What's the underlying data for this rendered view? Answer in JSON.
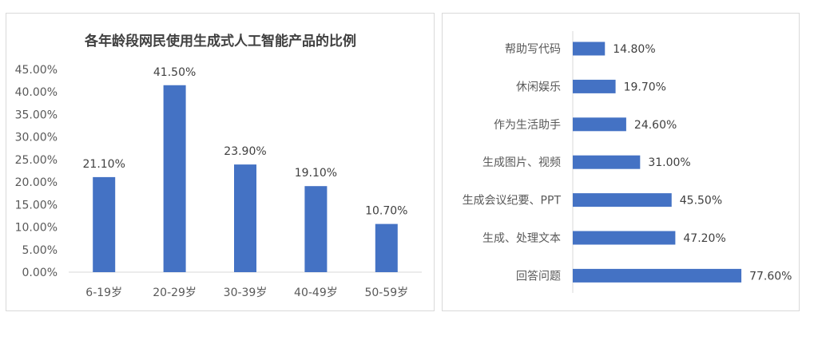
{
  "chart_data": [
    {
      "type": "bar",
      "title": "各年龄段网民使用生成式人工智能产品的比例",
      "categories": [
        "6-19岁",
        "20-29岁",
        "30-39岁",
        "40-49岁",
        "50-59岁"
      ],
      "values": [
        21.1,
        41.5,
        23.9,
        19.1,
        10.7
      ],
      "value_labels": [
        "21.10%",
        "41.50%",
        "23.90%",
        "19.10%",
        "10.70%"
      ],
      "ylim": [
        0,
        45
      ],
      "yticks": [
        "0.00%",
        "5.00%",
        "10.00%",
        "15.00%",
        "20.00%",
        "25.00%",
        "30.00%",
        "35.00%",
        "40.00%",
        "45.00%"
      ],
      "grid": false,
      "color": "#4472C4"
    },
    {
      "type": "bar",
      "orientation": "horizontal",
      "categories": [
        "帮助写代码",
        "休闲娱乐",
        "作为生活助手",
        "生成图片、视频",
        "生成会议纪要、PPT",
        "生成、处理文本",
        "回答问题"
      ],
      "values": [
        14.8,
        19.7,
        24.6,
        31.0,
        45.5,
        47.2,
        77.6
      ],
      "value_labels": [
        "14.80%",
        "19.70%",
        "24.60%",
        "31.00%",
        "45.50%",
        "47.20%",
        "77.60%"
      ],
      "xlim": [
        0,
        100
      ],
      "grid": false,
      "color": "#4472C4"
    }
  ]
}
